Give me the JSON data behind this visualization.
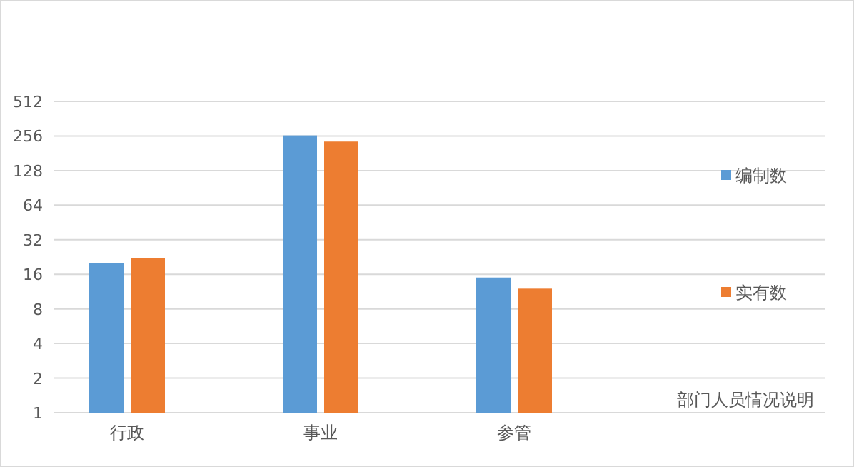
{
  "chart_data": {
    "type": "bar",
    "categories": [
      "行政",
      "事业",
      "参管"
    ],
    "series": [
      {
        "name": "编制数",
        "color": "#5b9bd5",
        "values": [
          20,
          259,
          15
        ]
      },
      {
        "name": "实有数",
        "color": "#ed7d31",
        "values": [
          22,
          229,
          12
        ]
      }
    ],
    "log": "y",
    "ylim": [
      1,
      512
    ],
    "yticks": [
      1,
      2,
      4,
      8,
      16,
      32,
      64,
      128,
      256,
      512
    ],
    "grid": "y",
    "legend": "right",
    "annotations": [
      "部门人员情况说明"
    ]
  }
}
